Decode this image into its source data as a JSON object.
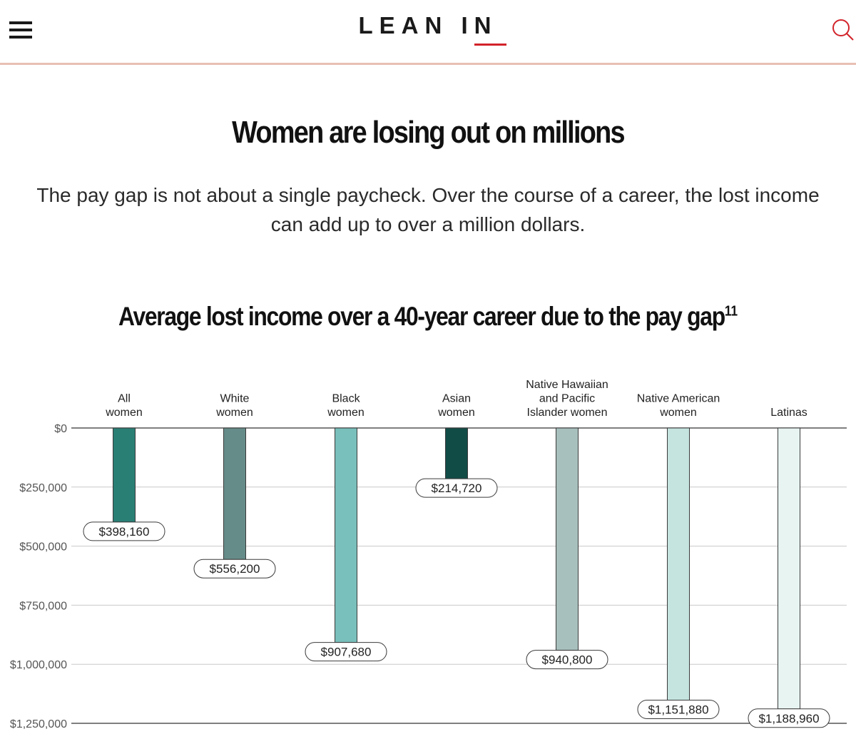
{
  "header": {
    "logo": "LEAN IN",
    "menu_icon": "hamburger-menu-icon",
    "search_icon": "search-icon"
  },
  "article": {
    "headline": "Women are losing out on millions",
    "subtitle": "The pay gap is not about a single paycheck. Over the course of a career, the lost income can add up to over a million dollars."
  },
  "chart_data": {
    "type": "bar",
    "title": "Average lost income over a 40-year career due to the pay gap",
    "title_footnote": "11",
    "categories": [
      [
        "All",
        "women"
      ],
      [
        "White",
        "women"
      ],
      [
        "Black",
        "women"
      ],
      [
        "Asian",
        "women"
      ],
      [
        "Native Hawaiian",
        "and Pacific",
        "Islander women"
      ],
      [
        "Native American",
        "women"
      ],
      [
        "Latinas"
      ]
    ],
    "values": [
      398160,
      556200,
      907680,
      214720,
      940800,
      1151880,
      1188960
    ],
    "value_labels": [
      "$398,160",
      "$556,200",
      "$907,680",
      "$214,720",
      "$940,800",
      "$1,151,880",
      "$1,188,960"
    ],
    "colors": [
      "#2a7f75",
      "#668c89",
      "#79bfbb",
      "#124c47",
      "#a8c0bd",
      "#c5e4e0",
      "#e7f4f2"
    ],
    "y_axis": {
      "direction": "downward",
      "ylim": [
        0,
        1250000
      ],
      "ticks": [
        0,
        250000,
        500000,
        750000,
        1000000,
        1250000
      ],
      "tick_labels": [
        "$0",
        "$250,000",
        "$500,000",
        "$750,000",
        "$1,000,000",
        "$1,250,000"
      ]
    },
    "grid": true,
    "legend": "none"
  }
}
